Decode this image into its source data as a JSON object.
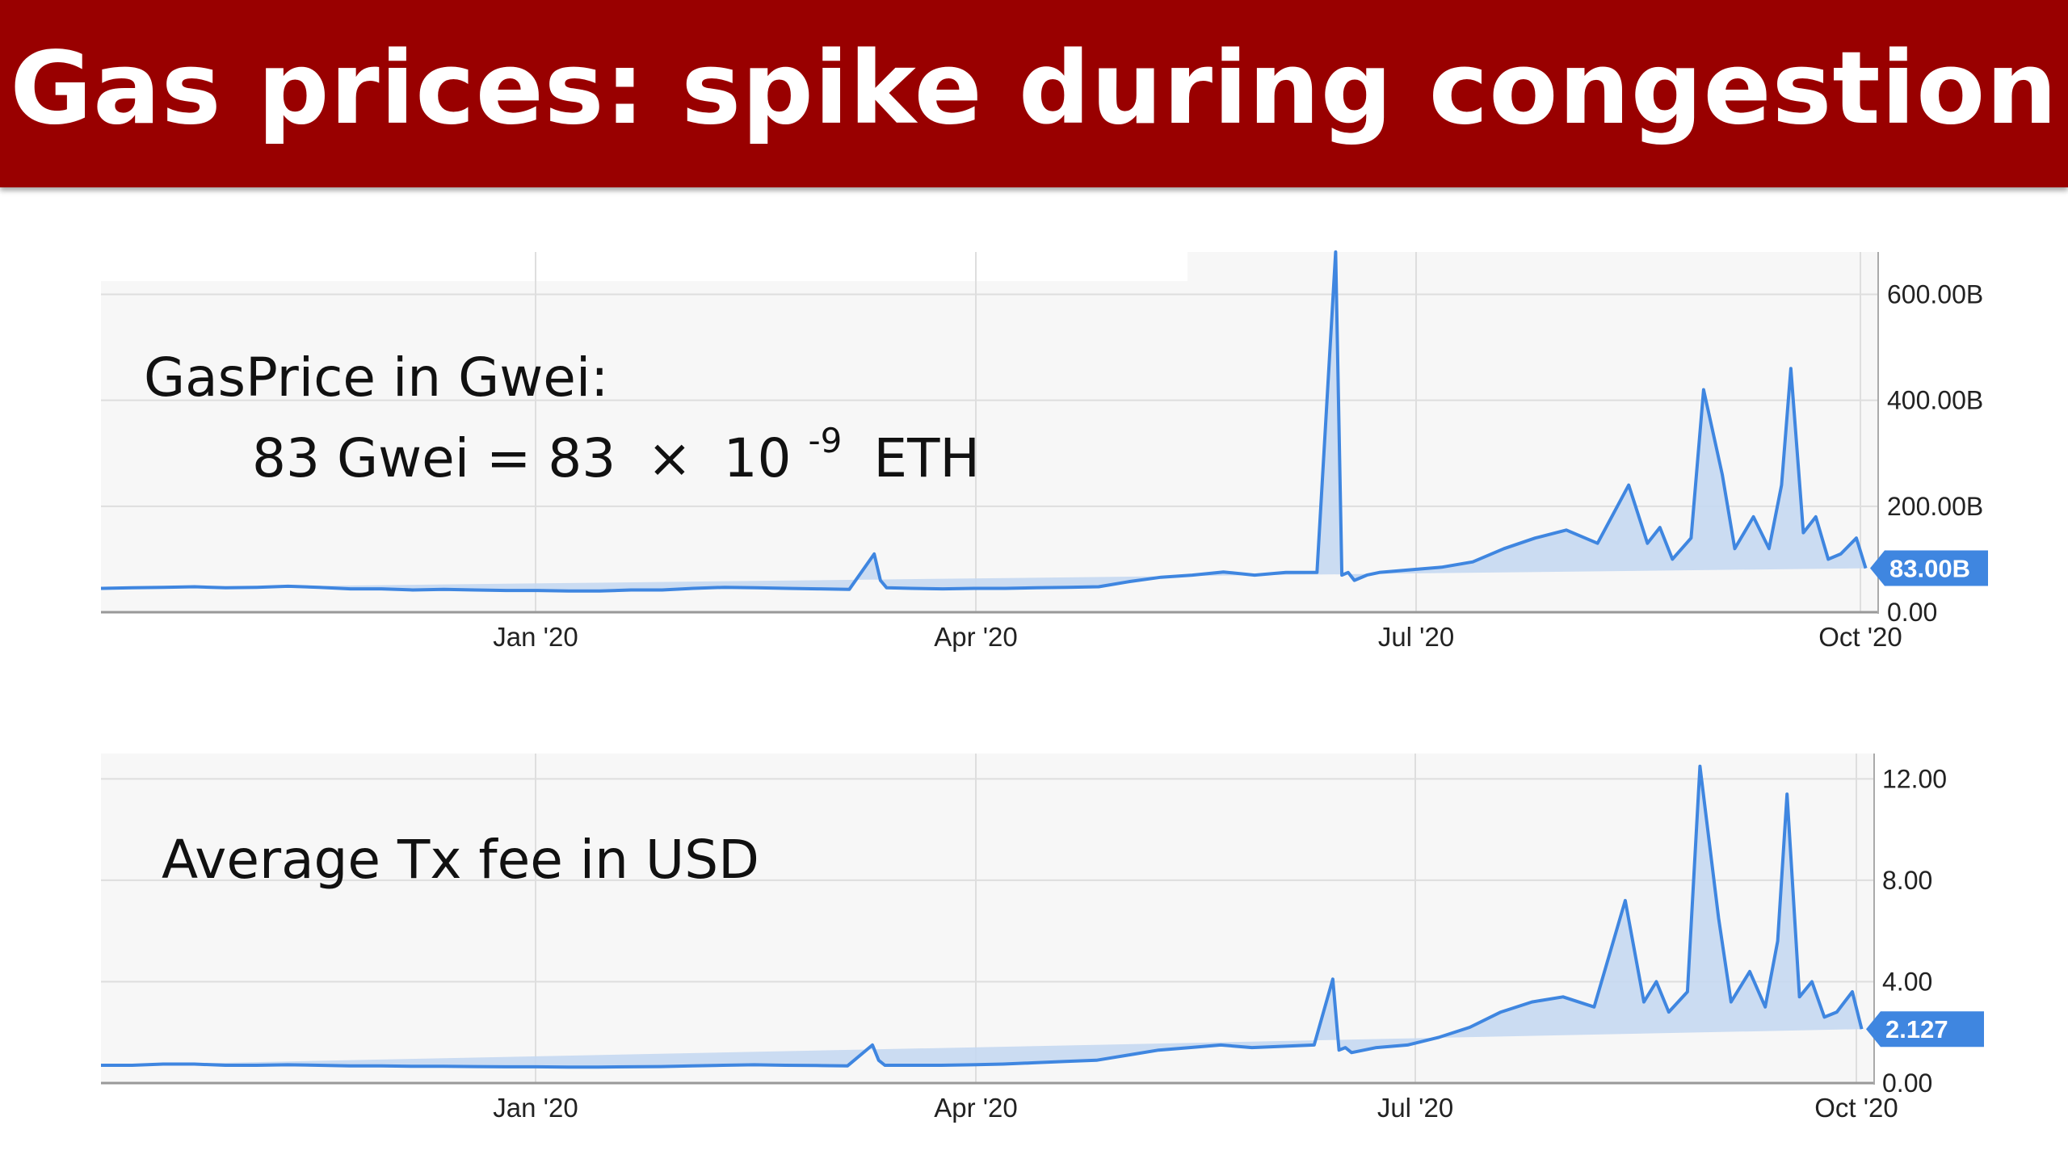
{
  "slide": {
    "title": "Gas prices:  spike during congestion"
  },
  "colors": {
    "title_bar": "#990000",
    "line": "#3f86e0",
    "area": "#c5d8f1",
    "plot_bg": "#f7f7f7",
    "badge": "#3f86e0"
  },
  "annotations": {
    "gas_title": "GasPrice in Gwei:",
    "gas_eq_lhs": "83 Gwei = 83",
    "gas_eq_times": "×",
    "gas_eq_base": "10",
    "gas_eq_exp": "-9",
    "gas_eq_unit": "ETH",
    "fee_title": "Average Tx fee in USD"
  },
  "chart_data": [
    {
      "type": "area",
      "title": "",
      "xlabel": "",
      "ylabel": "",
      "x_ticks": [
        "Jan '20",
        "Apr '20",
        "Jul '20",
        "Oct '20"
      ],
      "y_ticks": [
        "0.00",
        "200.00B",
        "400.00B",
        "600.00B"
      ],
      "y_tick_values": [
        0,
        200,
        400,
        600
      ],
      "ylim": [
        0,
        680
      ],
      "x_range_weeks": [
        -14,
        43
      ],
      "grid": true,
      "current_value_label": "83.00B",
      "current_value": 83,
      "points_x_weeks": [
        -14,
        -13,
        -12,
        -11,
        -10,
        -9,
        -8,
        -7,
        -6,
        -5,
        -4,
        -3,
        -2,
        -1,
        0,
        1,
        2,
        3,
        4,
        5,
        6,
        7,
        8,
        9,
        10,
        10.8,
        11,
        11.2,
        12,
        13,
        14,
        15,
        16,
        17,
        18,
        19,
        20,
        21,
        22,
        23,
        24,
        25,
        25.6,
        25.8,
        26,
        26.2,
        26.6,
        27,
        28,
        29,
        30,
        31,
        32,
        33,
        34,
        35,
        35.6,
        36,
        36.4,
        37,
        37.4,
        38,
        38.4,
        39,
        39.5,
        39.9,
        40.2,
        40.6,
        41,
        41.4,
        41.8,
        42.3,
        42.6,
        43
      ],
      "points_y": [
        45,
        46,
        47,
        48,
        46,
        47,
        49,
        47,
        44,
        44,
        42,
        43,
        42,
        41,
        41,
        40,
        40,
        42,
        42,
        45,
        47,
        46,
        45,
        44,
        43,
        110,
        60,
        46,
        45,
        44,
        45,
        45,
        46,
        47,
        48,
        58,
        66,
        70,
        76,
        70,
        75,
        75,
        680,
        70,
        75,
        60,
        70,
        75,
        80,
        85,
        95,
        120,
        140,
        155,
        130,
        240,
        130,
        160,
        100,
        140,
        420,
        260,
        120,
        180,
        120,
        240,
        460,
        150,
        180,
        100,
        110,
        140,
        83
      ]
    },
    {
      "type": "area",
      "title": "",
      "xlabel": "",
      "ylabel": "",
      "x_ticks": [
        "Jan '20",
        "Apr '20",
        "Jul '20",
        "Oct '20"
      ],
      "y_ticks": [
        "0.00",
        "4.00",
        "8.00",
        "12.00"
      ],
      "y_tick_values": [
        0,
        4,
        8,
        12
      ],
      "ylim": [
        0,
        13
      ],
      "x_range_weeks": [
        -14,
        43
      ],
      "grid": true,
      "current_value_label": "2.127",
      "current_value": 2.127,
      "points_x_weeks": [
        -14,
        -13,
        -12,
        -11,
        -10,
        -9,
        -8,
        -7,
        -6,
        -5,
        -4,
        -3,
        -2,
        -1,
        0,
        1,
        2,
        3,
        4,
        5,
        6,
        7,
        8,
        9,
        10,
        10.8,
        11,
        11.2,
        12,
        13,
        14,
        15,
        16,
        17,
        18,
        19,
        20,
        21,
        22,
        23,
        24,
        25,
        25.6,
        25.8,
        26,
        26.2,
        26.6,
        27,
        28,
        29,
        30,
        31,
        32,
        33,
        34,
        35,
        35.6,
        36,
        36.4,
        37,
        37.4,
        38,
        38.4,
        39,
        39.5,
        39.9,
        40.2,
        40.6,
        41,
        41.4,
        41.8,
        42.3,
        42.6,
        43
      ],
      "points_y": [
        0.7,
        0.7,
        0.75,
        0.75,
        0.7,
        0.7,
        0.72,
        0.7,
        0.68,
        0.68,
        0.66,
        0.66,
        0.65,
        0.64,
        0.64,
        0.63,
        0.63,
        0.64,
        0.65,
        0.68,
        0.7,
        0.72,
        0.7,
        0.69,
        0.68,
        1.5,
        0.9,
        0.7,
        0.7,
        0.7,
        0.72,
        0.75,
        0.8,
        0.85,
        0.9,
        1.1,
        1.3,
        1.4,
        1.5,
        1.4,
        1.45,
        1.5,
        4.1,
        1.3,
        1.4,
        1.2,
        1.3,
        1.4,
        1.5,
        1.8,
        2.2,
        2.8,
        3.2,
        3.4,
        3.0,
        7.2,
        3.2,
        4.0,
        2.8,
        3.6,
        12.5,
        6.5,
        3.2,
        4.4,
        3.0,
        5.6,
        11.4,
        3.4,
        4.0,
        2.6,
        2.8,
        3.6,
        2.127
      ]
    }
  ]
}
